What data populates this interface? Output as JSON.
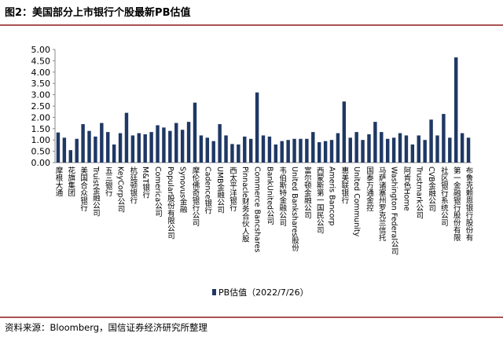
{
  "title": "图2：美国部分上市银行个股最新PB估值",
  "source": "资料来源：Bloomberg，国信证券经济研究所整理",
  "chart_data": {
    "type": "bar",
    "categories": [
      "摩根大通",
      null,
      "花旗集团",
      null,
      "美国合众银行",
      null,
      "Truist金融公司",
      null,
      "五三银行",
      null,
      "KeyCorp公司",
      null,
      "杭廷顿银行",
      null,
      "M&T银行",
      null,
      "Comerica公司",
      null,
      "Popular股份有限公司",
      null,
      "Synovus金融",
      null,
      "摩伦佛奇银行公司",
      null,
      "Cadence银行",
      null,
      "UMB金融公司",
      null,
      "西太平洋银行",
      null,
      "Pinnacle财务合伙人股",
      null,
      "Commerce Bancshares",
      null,
      "BankUnited公司",
      null,
      "韦伯斯特金融公司",
      null,
      "United Bankshares股份",
      null,
      "富尔顿金融公司",
      null,
      "西蒙斯第一国民公司",
      null,
      "Ameris Bancorp",
      null,
      "惠美联银行",
      null,
      "United Community",
      null,
      "国泰万通金控",
      null,
      "马萨诸塞州罗克兰信托",
      null,
      "Washington Federal公司",
      null,
      "阿肯色Home",
      null,
      "Trustmark公司",
      null,
      "CVB金融公司",
      null,
      "社区银行系统公司",
      null,
      "第一金融银行股份有限",
      null,
      "布鲁克赖恩银行股份有"
    ],
    "series": [
      {
        "name": "PB估值（2022/7/26）",
        "color": "#1f3864",
        "values": [
          1.33,
          1.1,
          0.55,
          1.05,
          1.7,
          1.4,
          1.15,
          1.75,
          1.35,
          0.8,
          1.3,
          2.2,
          1.2,
          1.3,
          1.25,
          1.35,
          1.65,
          1.55,
          1.4,
          1.75,
          1.45,
          1.8,
          2.65,
          1.2,
          1.1,
          0.95,
          1.7,
          1.2,
          0.82,
          0.8,
          1.15,
          1.05,
          3.1,
          1.2,
          1.15,
          0.8,
          0.95,
          1.0,
          1.05,
          1.05,
          1.05,
          1.35,
          0.9,
          0.95,
          1.0,
          1.3,
          2.7,
          1.1,
          1.35,
          1.0,
          1.25,
          1.8,
          1.35,
          1.05,
          1.1,
          1.3,
          1.2,
          0.8,
          1.2,
          1.0,
          1.9,
          1.2,
          2.15,
          1.1,
          4.65,
          1.3,
          1.1
        ]
      }
    ],
    "ylim": [
      0,
      5
    ],
    "yticks": [
      {
        "value": 0,
        "label": "0.00"
      },
      {
        "value": 0.5,
        "label": "0.50"
      },
      {
        "value": 1,
        "label": "1.00"
      },
      {
        "value": 1.5,
        "label": "1.50"
      },
      {
        "value": 2,
        "label": "2.00"
      },
      {
        "value": 2.5,
        "label": "2.50"
      },
      {
        "value": 3,
        "label": "3.00"
      },
      {
        "value": 3.5,
        "label": "3.50"
      },
      {
        "value": 4,
        "label": "4.00"
      },
      {
        "value": 4.5,
        "label": "4.50"
      },
      {
        "value": 5,
        "label": "5.00"
      }
    ],
    "grid": false,
    "legend": "bottom"
  }
}
